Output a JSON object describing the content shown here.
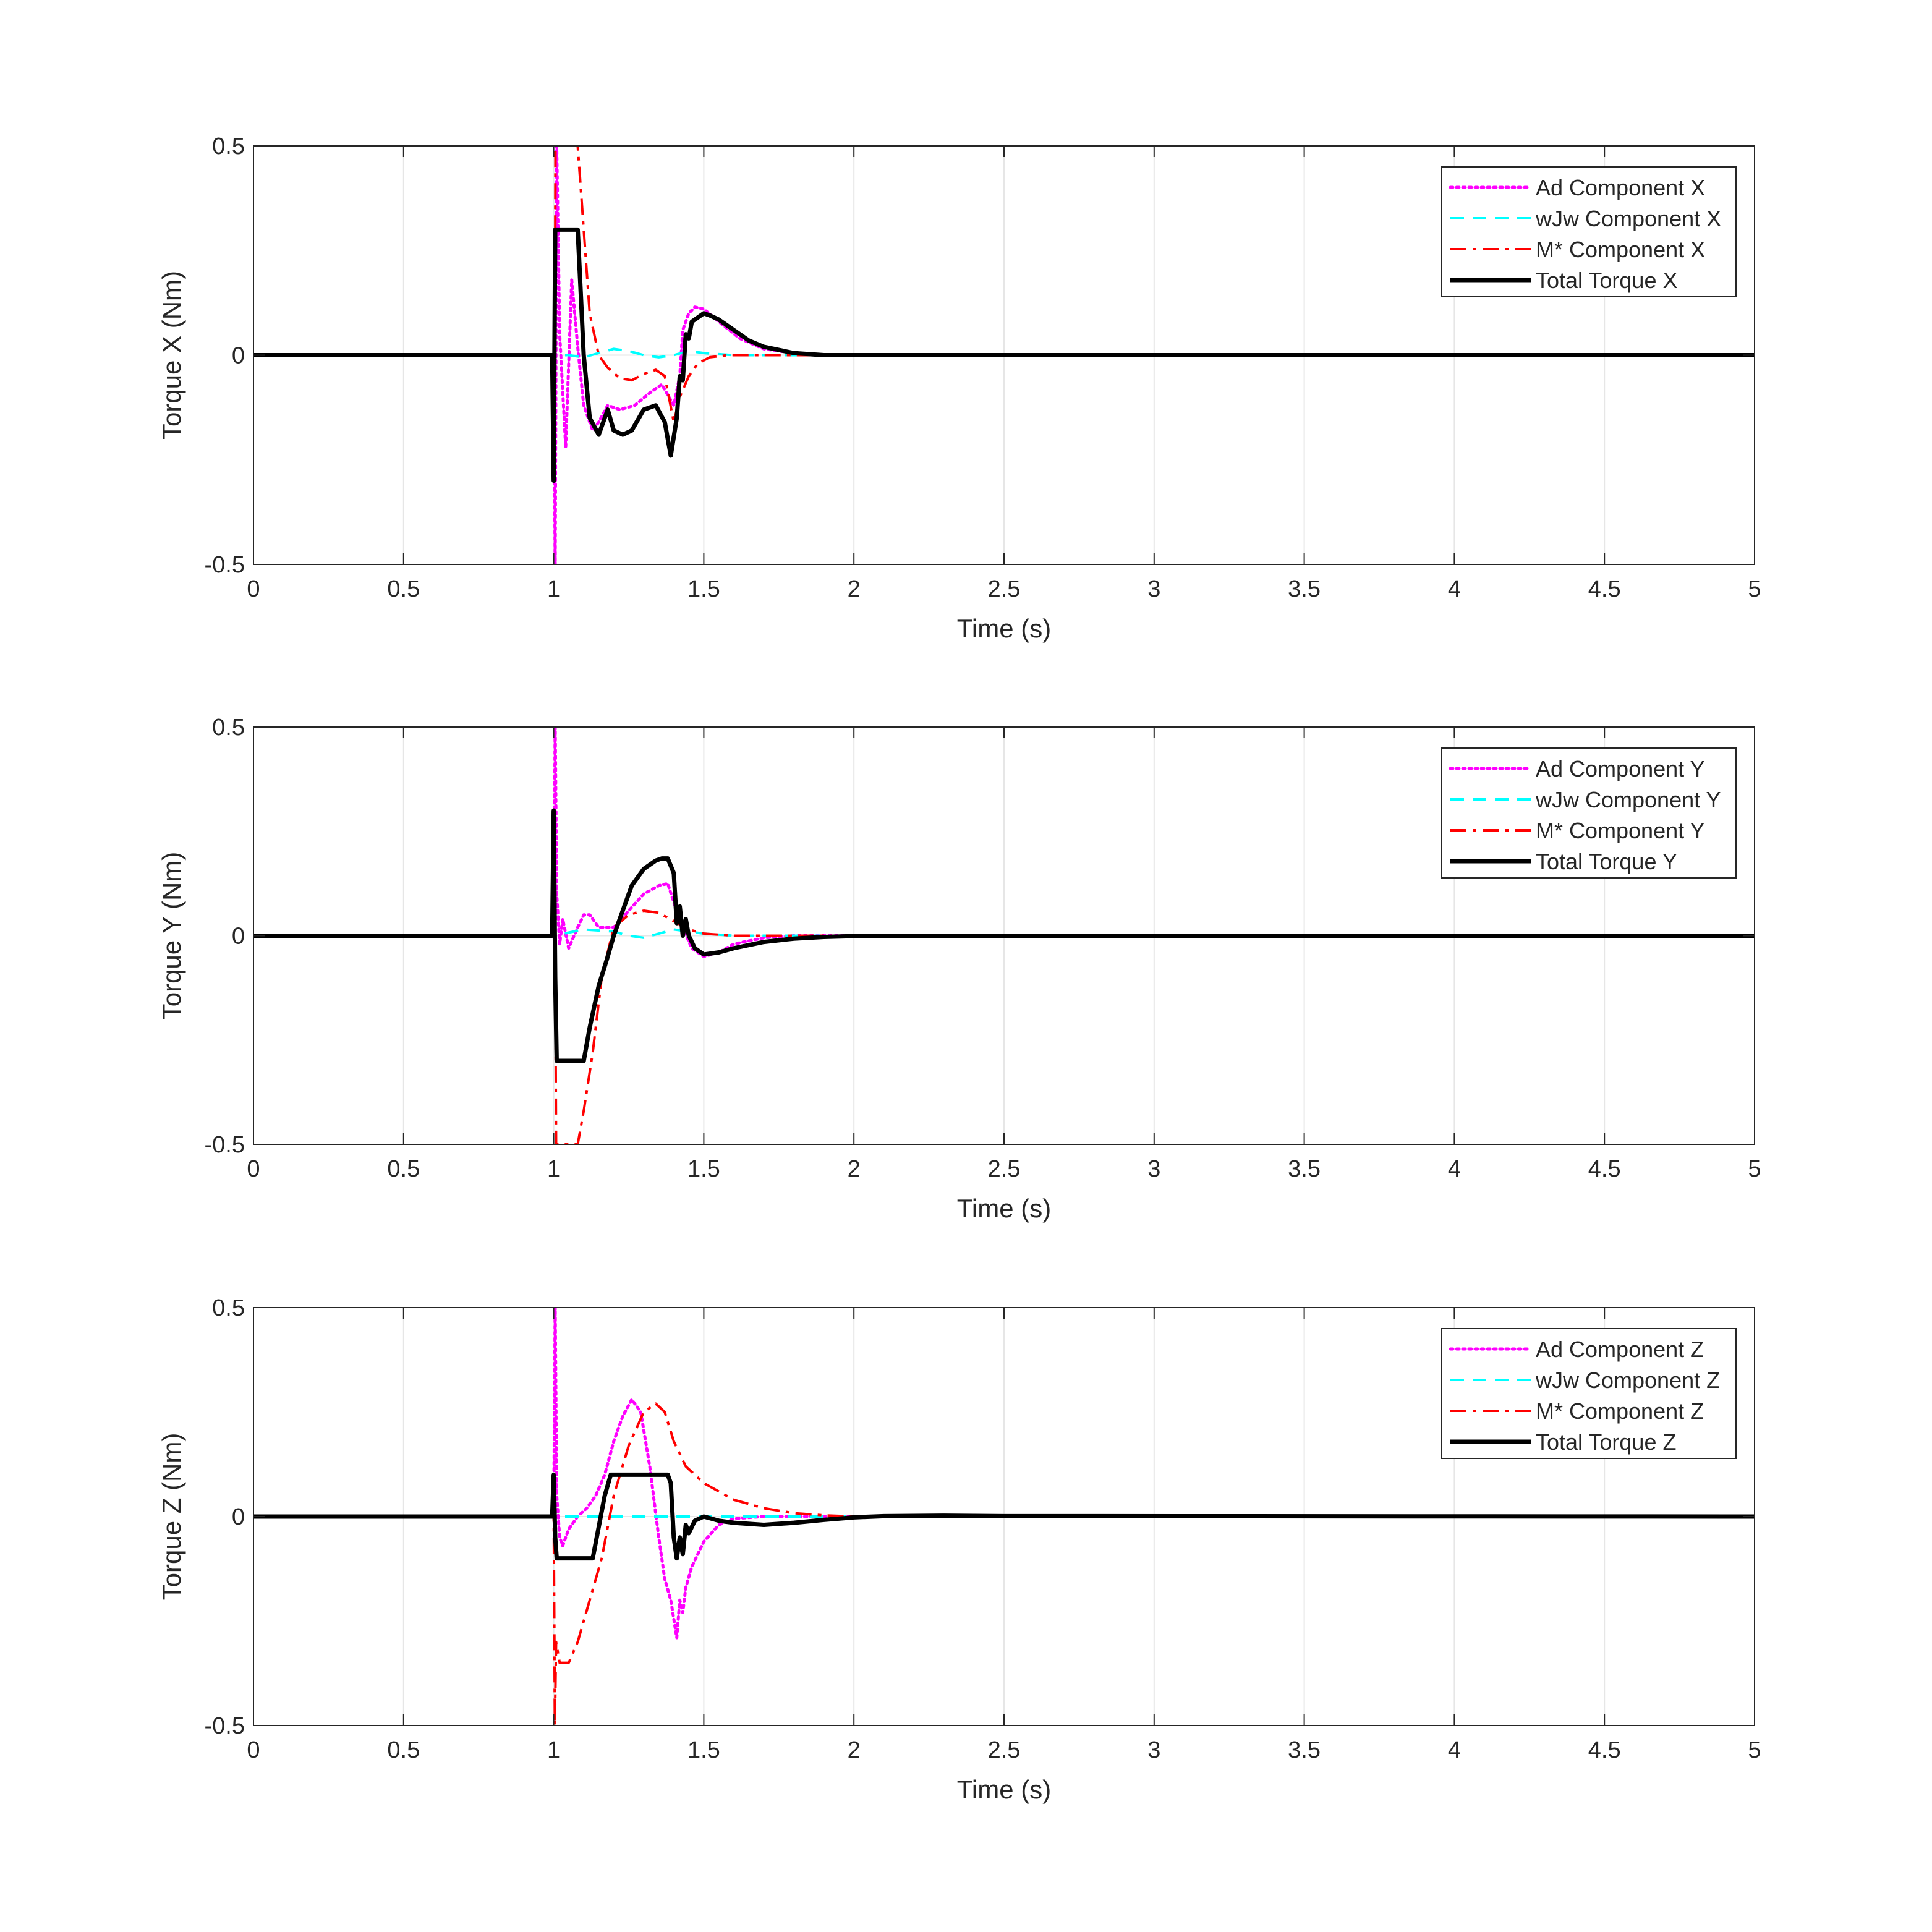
{
  "chart_data": [
    {
      "type": "line",
      "xlabel": "Time (s)",
      "ylabel": "Torque X (Nm)",
      "xlim": [
        0,
        5
      ],
      "ylim": [
        -0.5,
        0.5
      ],
      "xticks": [
        "0",
        "0.5",
        "1",
        "1.5",
        "2",
        "2.5",
        "3",
        "3.5",
        "4",
        "4.5",
        "5"
      ],
      "yticks": [
        "-0.5",
        "0",
        "0.5"
      ],
      "grid": true,
      "legend_position": "top-right",
      "series": [
        {
          "name": "Ad Component X",
          "color": "#ff00ff",
          "style": "dotted",
          "x": [
            0,
            1.0,
            1.005,
            1.01,
            1.02,
            1.04,
            1.06,
            1.08,
            1.1,
            1.13,
            1.15,
            1.18,
            1.22,
            1.27,
            1.32,
            1.36,
            1.4,
            1.42,
            1.43,
            1.45,
            1.47,
            1.5,
            1.55,
            1.62,
            1.7,
            1.8,
            1.9,
            2.0,
            5.0
          ],
          "y": [
            0,
            0,
            -0.5,
            0.5,
            0.05,
            -0.22,
            0.18,
            0.02,
            -0.12,
            -0.18,
            -0.16,
            -0.12,
            -0.13,
            -0.12,
            -0.09,
            -0.07,
            -0.12,
            -0.05,
            0.06,
            0.1,
            0.115,
            0.11,
            0.08,
            0.04,
            0.015,
            0.005,
            0.0,
            0.0,
            0.0
          ]
        },
        {
          "name": "wJw Component X",
          "color": "#00ffff",
          "style": "dashed",
          "x": [
            0,
            1.0,
            1.05,
            1.1,
            1.15,
            1.2,
            1.25,
            1.3,
            1.35,
            1.4,
            1.45,
            1.5,
            1.6,
            1.7,
            2.0,
            5.0
          ],
          "y": [
            0,
            0,
            0.0,
            -0.005,
            0.005,
            0.015,
            0.01,
            0.0,
            -0.005,
            0.0,
            0.01,
            0.005,
            0.0,
            0.0,
            0.0,
            0.0
          ]
        },
        {
          "name": "M* Component X",
          "color": "#ff0000",
          "style": "dashdot",
          "x": [
            0,
            1.0,
            1.003,
            1.006,
            1.01,
            1.02,
            1.04,
            1.06,
            1.08,
            1.1,
            1.12,
            1.15,
            1.18,
            1.22,
            1.26,
            1.3,
            1.34,
            1.37,
            1.4,
            1.42,
            1.45,
            1.48,
            1.52,
            1.58,
            1.65,
            1.75,
            1.85,
            2.0,
            5.0
          ],
          "y": [
            0,
            0,
            -0.3,
            0.5,
            0.5,
            0.5,
            0.5,
            0.5,
            0.5,
            0.3,
            0.1,
            0.0,
            -0.03,
            -0.055,
            -0.06,
            -0.045,
            -0.035,
            -0.05,
            -0.16,
            -0.1,
            -0.05,
            -0.02,
            -0.005,
            0.0,
            0.0,
            0.0,
            0.0,
            0.0,
            0.0
          ]
        },
        {
          "name": "Total Torque X",
          "color": "#000000",
          "style": "solid",
          "x": [
            0,
            0.995,
            1.0,
            1.005,
            1.01,
            1.02,
            1.08,
            1.1,
            1.12,
            1.15,
            1.16,
            1.18,
            1.2,
            1.23,
            1.26,
            1.3,
            1.34,
            1.37,
            1.39,
            1.41,
            1.42,
            1.43,
            1.44,
            1.45,
            1.46,
            1.48,
            1.5,
            1.52,
            1.55,
            1.6,
            1.65,
            1.7,
            1.8,
            1.9,
            2.0,
            5.0
          ],
          "y": [
            0,
            0,
            -0.3,
            0.3,
            0.3,
            0.3,
            0.3,
            0.0,
            -0.15,
            -0.19,
            -0.17,
            -0.13,
            -0.18,
            -0.19,
            -0.18,
            -0.13,
            -0.12,
            -0.16,
            -0.24,
            -0.15,
            -0.05,
            -0.06,
            0.05,
            0.04,
            0.08,
            0.09,
            0.1,
            0.095,
            0.085,
            0.06,
            0.035,
            0.02,
            0.005,
            0.0,
            0.0,
            0.0
          ]
        }
      ]
    },
    {
      "type": "line",
      "xlabel": "Time (s)",
      "ylabel": "Torque Y (Nm)",
      "xlim": [
        0,
        5
      ],
      "ylim": [
        -0.5,
        0.5
      ],
      "xticks": [
        "0",
        "0.5",
        "1",
        "1.5",
        "2",
        "2.5",
        "3",
        "3.5",
        "4",
        "4.5",
        "5"
      ],
      "yticks": [
        "-0.5",
        "0",
        "0.5"
      ],
      "grid": true,
      "legend_position": "top-right",
      "series": [
        {
          "name": "Ad Component Y",
          "color": "#ff00ff",
          "style": "dotted",
          "x": [
            0,
            1.0,
            1.005,
            1.01,
            1.02,
            1.03,
            1.05,
            1.08,
            1.1,
            1.12,
            1.15,
            1.2,
            1.25,
            1.3,
            1.35,
            1.38,
            1.4,
            1.43,
            1.46,
            1.5,
            1.55,
            1.6,
            1.7,
            1.8,
            2.0,
            5.0
          ],
          "y": [
            0,
            0,
            0.5,
            0.1,
            -0.02,
            0.04,
            -0.03,
            0.02,
            0.05,
            0.05,
            0.02,
            0.02,
            0.06,
            0.1,
            0.12,
            0.125,
            0.08,
            0.02,
            -0.03,
            -0.05,
            -0.04,
            -0.02,
            -0.005,
            0.0,
            0.0,
            0.0
          ]
        },
        {
          "name": "wJw Component Y",
          "color": "#00ffff",
          "style": "dashed",
          "x": [
            0,
            1.0,
            1.1,
            1.2,
            1.25,
            1.3,
            1.35,
            1.4,
            1.45,
            1.5,
            1.6,
            2.0,
            5.0
          ],
          "y": [
            0,
            0,
            0.015,
            0.01,
            0.0,
            -0.005,
            0.005,
            0.015,
            0.01,
            0.005,
            0.0,
            0.0,
            0.0
          ]
        },
        {
          "name": "M* Component Y",
          "color": "#ff0000",
          "style": "dashdot",
          "x": [
            0,
            1.0,
            1.004,
            1.008,
            1.02,
            1.05,
            1.08,
            1.1,
            1.13,
            1.16,
            1.2,
            1.25,
            1.3,
            1.35,
            1.4,
            1.45,
            1.5,
            1.6,
            1.7,
            1.8,
            2.0,
            5.0
          ],
          "y": [
            0,
            0,
            0.1,
            -0.5,
            -0.5,
            -0.5,
            -0.5,
            -0.42,
            -0.28,
            -0.1,
            0.02,
            0.05,
            0.06,
            0.055,
            0.035,
            0.015,
            0.005,
            0.0,
            0.0,
            0.0,
            0.0,
            0.0
          ]
        },
        {
          "name": "Total Torque Y",
          "color": "#000000",
          "style": "solid",
          "x": [
            0,
            0.995,
            1.0,
            1.005,
            1.01,
            1.02,
            1.1,
            1.12,
            1.15,
            1.18,
            1.2,
            1.23,
            1.26,
            1.3,
            1.34,
            1.36,
            1.38,
            1.4,
            1.41,
            1.42,
            1.43,
            1.44,
            1.45,
            1.47,
            1.5,
            1.55,
            1.6,
            1.7,
            1.8,
            1.9,
            2.0,
            2.2,
            5.0
          ],
          "y": [
            0,
            0,
            0.3,
            -0.1,
            -0.3,
            -0.3,
            -0.3,
            -0.22,
            -0.12,
            -0.05,
            0.0,
            0.06,
            0.12,
            0.16,
            0.18,
            0.185,
            0.185,
            0.15,
            0.03,
            0.07,
            0.0,
            0.04,
            0.0,
            -0.03,
            -0.045,
            -0.04,
            -0.03,
            -0.015,
            -0.007,
            -0.003,
            -0.001,
            0.0,
            0.0
          ]
        }
      ]
    },
    {
      "type": "line",
      "xlabel": "Time (s)",
      "ylabel": "Torque Z (Nm)",
      "xlim": [
        0,
        5
      ],
      "ylim": [
        -0.5,
        0.5
      ],
      "xticks": [
        "0",
        "0.5",
        "1",
        "1.5",
        "2",
        "2.5",
        "3",
        "3.5",
        "4",
        "4.5",
        "5"
      ],
      "yticks": [
        "-0.5",
        "0",
        "0.5"
      ],
      "grid": true,
      "legend_position": "top-right",
      "series": [
        {
          "name": "Ad Component Z",
          "color": "#ff00ff",
          "style": "dotted",
          "x": [
            0,
            1.0,
            1.005,
            1.01,
            1.02,
            1.03,
            1.05,
            1.08,
            1.11,
            1.14,
            1.17,
            1.2,
            1.23,
            1.26,
            1.29,
            1.32,
            1.35,
            1.37,
            1.39,
            1.41,
            1.42,
            1.43,
            1.44,
            1.46,
            1.5,
            1.55,
            1.6,
            1.7,
            2.0,
            5.0
          ],
          "y": [
            0,
            0,
            0.5,
            0.05,
            -0.05,
            -0.07,
            -0.03,
            0.0,
            0.02,
            0.05,
            0.1,
            0.18,
            0.24,
            0.28,
            0.25,
            0.12,
            -0.05,
            -0.15,
            -0.2,
            -0.29,
            -0.2,
            -0.23,
            -0.17,
            -0.12,
            -0.06,
            -0.02,
            -0.005,
            0.0,
            0.0,
            0.0
          ]
        },
        {
          "name": "wJw Component Z",
          "color": "#00ffff",
          "style": "dashed",
          "x": [
            0,
            1.0,
            1.5,
            2.0,
            5.0
          ],
          "y": [
            0,
            0,
            0.0,
            0.0,
            0.0
          ]
        },
        {
          "name": "M* Component Z",
          "color": "#ff0000",
          "style": "dashdot",
          "x": [
            0,
            1.0,
            1.004,
            1.008,
            1.02,
            1.05,
            1.08,
            1.12,
            1.16,
            1.2,
            1.25,
            1.3,
            1.34,
            1.37,
            1.4,
            1.44,
            1.5,
            1.6,
            1.7,
            1.8,
            1.9,
            2.0,
            5.0
          ],
          "y": [
            0,
            0,
            -0.5,
            -0.3,
            -0.35,
            -0.35,
            -0.3,
            -0.2,
            -0.1,
            0.05,
            0.17,
            0.25,
            0.27,
            0.25,
            0.18,
            0.12,
            0.08,
            0.04,
            0.02,
            0.008,
            0.003,
            0.0,
            0.0
          ]
        },
        {
          "name": "Total Torque Z",
          "color": "#000000",
          "style": "solid",
          "x": [
            0,
            0.995,
            1.0,
            1.005,
            1.01,
            1.02,
            1.12,
            1.13,
            1.17,
            1.19,
            1.38,
            1.39,
            1.4,
            1.41,
            1.42,
            1.43,
            1.44,
            1.45,
            1.47,
            1.5,
            1.55,
            1.6,
            1.7,
            1.8,
            1.9,
            2.0,
            2.1,
            2.3,
            2.5,
            5.0
          ],
          "y": [
            0,
            0,
            0.1,
            -0.05,
            -0.1,
            -0.1,
            -0.1,
            -0.1,
            0.05,
            0.1,
            0.1,
            0.08,
            -0.05,
            -0.1,
            -0.05,
            -0.09,
            -0.02,
            -0.04,
            -0.01,
            0.0,
            -0.01,
            -0.015,
            -0.02,
            -0.015,
            -0.008,
            -0.002,
            0.001,
            0.002,
            0.001,
            0.0
          ]
        }
      ]
    }
  ]
}
